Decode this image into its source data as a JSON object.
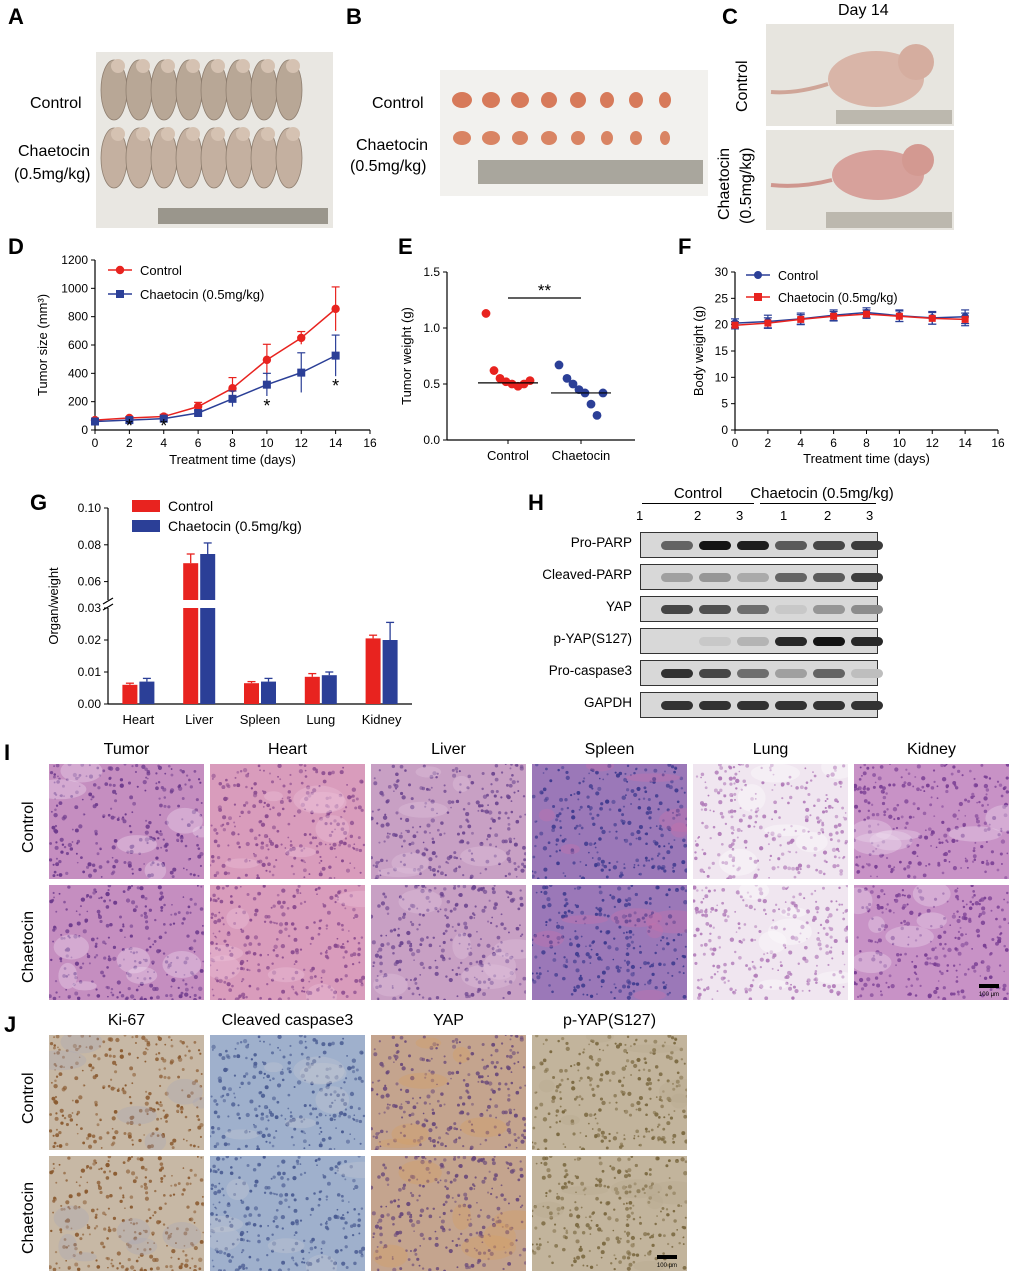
{
  "panels": {
    "A": {
      "letter": "A",
      "row1": "Control",
      "row2a": "Chaetocin",
      "row2b": "(0.5mg/kg)"
    },
    "B": {
      "letter": "B",
      "row1": "Control",
      "row2a": "Chaetocin",
      "row2b": "(0.5mg/kg)"
    },
    "C": {
      "letter": "C",
      "title": "Day 14",
      "row1": "Control",
      "row2a": "Chaetocin",
      "row2b": "(0.5mg/kg)"
    },
    "D": {
      "letter": "D"
    },
    "E": {
      "letter": "E"
    },
    "F": {
      "letter": "F"
    },
    "G": {
      "letter": "G"
    },
    "H": {
      "letter": "H",
      "group1": "Control",
      "group2": "Chaetocin (0.5mg/kg)",
      "lanes": [
        "1",
        "2",
        "3",
        "1",
        "2",
        "3"
      ],
      "bands": [
        "Pro-PARP",
        "Cleaved-PARP",
        "YAP",
        "p-YAP(S127)",
        "Pro-caspase3",
        "GAPDH"
      ],
      "intensity": [
        [
          0.55,
          0.95,
          0.9,
          0.6,
          0.7,
          0.75
        ],
        [
          0.25,
          0.3,
          0.2,
          0.55,
          0.6,
          0.75
        ],
        [
          0.7,
          0.65,
          0.5,
          0.05,
          0.3,
          0.35
        ],
        [
          0.0,
          0.05,
          0.15,
          0.85,
          0.95,
          0.85
        ],
        [
          0.8,
          0.7,
          0.5,
          0.25,
          0.55,
          0.1
        ],
        [
          0.8,
          0.8,
          0.8,
          0.8,
          0.8,
          0.8
        ]
      ]
    },
    "I": {
      "letter": "I",
      "columns": [
        "Tumor",
        "Heart",
        "Liver",
        "Spleen",
        "Lung",
        "Kidney"
      ],
      "rows": [
        "Control",
        "Chaetocin"
      ],
      "scale": "100 μm"
    },
    "J": {
      "letter": "J",
      "columns": [
        "Ki-67",
        "Cleaved caspase3",
        "YAP",
        "p-YAP(S127)"
      ],
      "rows": [
        "Control",
        "Chaetocin"
      ],
      "scale": "100 μm"
    }
  },
  "chart_data": [
    {
      "id": "D",
      "type": "line",
      "xlabel": "Treatment time (days)",
      "ylabel": "Tumor size (mm³)",
      "xlim": [
        0,
        16
      ],
      "ylim": [
        0,
        1200
      ],
      "xticks": [
        0,
        2,
        4,
        6,
        8,
        10,
        12,
        14,
        16
      ],
      "yticks": [
        0,
        200,
        400,
        600,
        800,
        1000,
        1200
      ],
      "legend": "top-left",
      "series": [
        {
          "name": "Control",
          "color": "#e8231f",
          "marker": "circle",
          "x": [
            0,
            2,
            4,
            6,
            8,
            10,
            12,
            14
          ],
          "y": [
            70,
            85,
            95,
            165,
            295,
            495,
            650,
            855
          ],
          "err": [
            10,
            10,
            15,
            30,
            75,
            110,
            45,
            155
          ]
        },
        {
          "name": "Chaetocin (0.5mg/kg)",
          "color": "#2b3f97",
          "marker": "square",
          "x": [
            0,
            2,
            4,
            6,
            8,
            10,
            12,
            14
          ],
          "y": [
            60,
            70,
            80,
            120,
            220,
            320,
            405,
            525
          ],
          "err": [
            10,
            10,
            10,
            20,
            55,
            80,
            140,
            145
          ]
        }
      ],
      "annotations": [
        {
          "x": 2,
          "text": "*"
        },
        {
          "x": 4,
          "text": "*"
        },
        {
          "x": 10,
          "text": "*"
        },
        {
          "x": 14,
          "text": "*"
        }
      ]
    },
    {
      "id": "E",
      "type": "scatter",
      "ylabel": "Tumor weight (g)",
      "ylim": [
        0,
        1.5
      ],
      "yticks": [
        "0.0",
        "0.5",
        "1.0",
        "1.5"
      ],
      "categories": [
        "Control",
        "Chaetocin"
      ],
      "series": [
        {
          "name": "Control",
          "color": "#e8231f",
          "values": [
            1.13,
            0.62,
            0.55,
            0.52,
            0.5,
            0.48,
            0.5,
            0.53
          ],
          "median": 0.51
        },
        {
          "name": "Chaetocin",
          "color": "#2b3f97",
          "values": [
            0.67,
            0.55,
            0.5,
            0.45,
            0.42,
            0.32,
            0.22,
            0.42
          ],
          "median": 0.42
        }
      ],
      "significance": "**"
    },
    {
      "id": "F",
      "type": "line",
      "xlabel": "Treatment time (days)",
      "ylabel": "Body weight (g)",
      "xlim": [
        0,
        16
      ],
      "ylim": [
        0,
        30
      ],
      "xticks": [
        0,
        2,
        4,
        6,
        8,
        10,
        12,
        14,
        16
      ],
      "yticks": [
        0,
        5,
        10,
        15,
        20,
        25,
        30
      ],
      "legend": "top-left",
      "series": [
        {
          "name": "Control",
          "color": "#2b3f97",
          "marker": "circle",
          "x": [
            0,
            2,
            4,
            6,
            8,
            10,
            12,
            14
          ],
          "y": [
            20.3,
            20.6,
            21.1,
            21.8,
            22.3,
            21.7,
            21.3,
            21.5
          ],
          "err": [
            0.8,
            1.2,
            1.1,
            1.0,
            0.9,
            1.1,
            1.2,
            1.3
          ]
        },
        {
          "name": "Chaetocin (0.5mg/kg)",
          "color": "#e8231f",
          "marker": "square",
          "x": [
            0,
            2,
            4,
            6,
            8,
            10,
            12,
            14
          ],
          "y": [
            19.9,
            20.3,
            21.0,
            21.6,
            22.0,
            21.6,
            21.2,
            21.0
          ],
          "err": [
            0.7,
            1.0,
            0.9,
            0.9,
            0.8,
            1.0,
            1.1,
            1.2
          ]
        }
      ]
    },
    {
      "id": "G",
      "type": "bar",
      "ylabel": "Organ/weight",
      "categories": [
        "Heart",
        "Liver",
        "Spleen",
        "Lung",
        "Kidney"
      ],
      "yticks_low": [
        "0.00",
        "0.01",
        "0.02",
        "0.03"
      ],
      "yticks_high": [
        "0.06",
        "0.08",
        "0.10"
      ],
      "axis_break": [
        0.03,
        0.05
      ],
      "legend": "top-left",
      "series": [
        {
          "name": "Control",
          "color": "#e8231f",
          "values": [
            0.006,
            0.07,
            0.0065,
            0.0085,
            0.0205
          ],
          "err": [
            0.0005,
            0.005,
            0.0005,
            0.001,
            0.001
          ]
        },
        {
          "name": "Chaetocin (0.5mg/kg)",
          "color": "#2b3f97",
          "values": [
            0.007,
            0.075,
            0.007,
            0.009,
            0.02
          ],
          "err": [
            0.001,
            0.006,
            0.001,
            0.001,
            0.0055
          ]
        }
      ]
    }
  ]
}
